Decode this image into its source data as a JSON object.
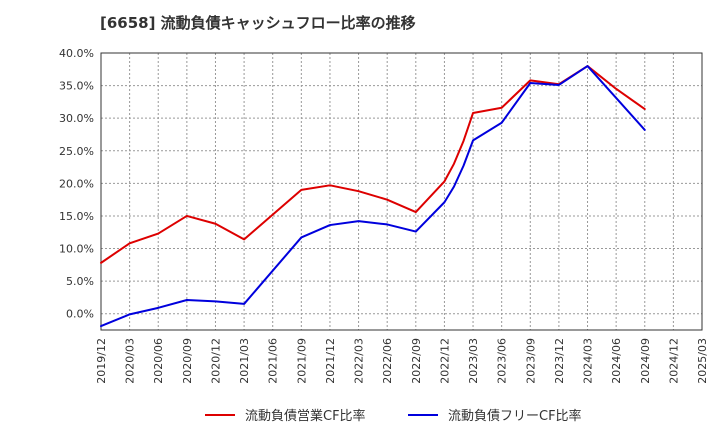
{
  "chart_data": {
    "type": "line",
    "title": "[6658]  流動負債キャッシュフロー比率の推移",
    "xlabel": "",
    "ylabel": "",
    "ylim": [
      -2.5,
      40
    ],
    "yticks": [
      0,
      5,
      10,
      15,
      20,
      25,
      30,
      35,
      40
    ],
    "y_tick_labels": [
      "0.0%",
      "5.0%",
      "10.0%",
      "15.0%",
      "20.0%",
      "25.0%",
      "30.0%",
      "35.0%",
      "40.0%"
    ],
    "categories": [
      "2019/12",
      "2020/03",
      "2020/06",
      "2020/09",
      "2020/12",
      "2021/03",
      "2021/06",
      "2021/09",
      "2021/12",
      "2022/03",
      "2022/06",
      "2022/09",
      "2022/12",
      "2023/03",
      "2023/06",
      "2023/09",
      "2023/12",
      "2024/03",
      "2024/06",
      "2024/09",
      "2024/12",
      "2025/03"
    ],
    "grid": true,
    "legend_position": "bottom",
    "series": [
      {
        "name": "流動負債営業CF比率",
        "color": "#dd0000",
        "points": [
          {
            "x": 0,
            "y": 7.8
          },
          {
            "x": 1,
            "y": 10.8
          },
          {
            "x": 2,
            "y": 12.3
          },
          {
            "x": 3,
            "y": 15.0
          },
          {
            "x": 4,
            "y": 13.8
          },
          {
            "x": 5,
            "y": 11.4
          },
          {
            "x": 7,
            "y": 19.0
          },
          {
            "x": 8,
            "y": 19.7
          },
          {
            "x": 9,
            "y": 18.8
          },
          {
            "x": 10,
            "y": 17.5
          },
          {
            "x": 11,
            "y": 15.6
          },
          {
            "x": 12,
            "y": 20.3
          },
          {
            "x": 12.333,
            "y": 23.0
          },
          {
            "x": 12.667,
            "y": 26.5
          },
          {
            "x": 13,
            "y": 30.8
          },
          {
            "x": 14,
            "y": 31.6
          },
          {
            "x": 15,
            "y": 35.8
          },
          {
            "x": 16,
            "y": 35.2
          },
          {
            "x": 17,
            "y": 38.0
          },
          {
            "x": 18,
            "y": 34.5
          },
          {
            "x": 19,
            "y": 31.4
          }
        ]
      },
      {
        "name": "流動負債フリーCF比率",
        "color": "#0000dd",
        "points": [
          {
            "x": 0,
            "y": -1.9
          },
          {
            "x": 1,
            "y": -0.1
          },
          {
            "x": 2,
            "y": 0.9
          },
          {
            "x": 3,
            "y": 2.1
          },
          {
            "x": 4,
            "y": 1.9
          },
          {
            "x": 5,
            "y": 1.5
          },
          {
            "x": 7,
            "y": 11.7
          },
          {
            "x": 8,
            "y": 13.6
          },
          {
            "x": 9,
            "y": 14.2
          },
          {
            "x": 10,
            "y": 13.7
          },
          {
            "x": 11,
            "y": 12.6
          },
          {
            "x": 12,
            "y": 17.1
          },
          {
            "x": 12.333,
            "y": 19.5
          },
          {
            "x": 12.667,
            "y": 22.7
          },
          {
            "x": 13,
            "y": 26.6
          },
          {
            "x": 14,
            "y": 29.3
          },
          {
            "x": 15,
            "y": 35.4
          },
          {
            "x": 16,
            "y": 35.1
          },
          {
            "x": 17,
            "y": 38.0
          },
          {
            "x": 18,
            "y": 33.1
          },
          {
            "x": 19,
            "y": 28.2
          }
        ]
      }
    ]
  }
}
